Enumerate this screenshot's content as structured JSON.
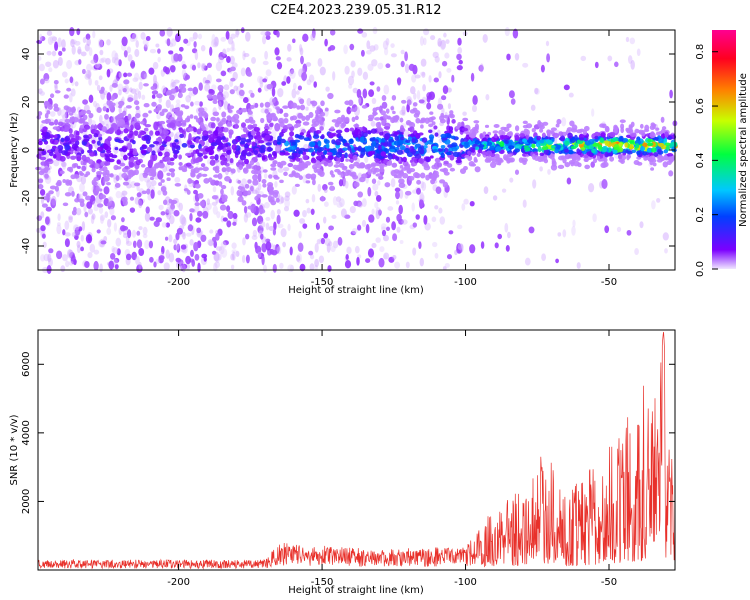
{
  "figure": {
    "title": "C2E4.2023.239.05.31.R12"
  },
  "chart_data": [
    {
      "type": "heatmap",
      "xlabel": "Height of straight line (km)",
      "ylabel": "Frequency (Hz)",
      "xlim": [
        -249,
        -27
      ],
      "ylim": [
        -50,
        50
      ],
      "xticks": [
        -200,
        -150,
        -100,
        -50
      ],
      "yticks": [
        -40,
        -20,
        0,
        20,
        40
      ],
      "colorbar": {
        "label": "Normalized spectral amplitude",
        "range": [
          0.0,
          0.88
        ],
        "ticks": [
          0.0,
          0.2,
          0.4,
          0.6,
          0.8
        ],
        "colormap": [
          "#f0e6ff",
          "#7c00ff",
          "#0040ff",
          "#00c8ff",
          "#00ff40",
          "#c8ff00",
          "#ff8000",
          "#ff0020",
          "#ff0090"
        ]
      },
      "ridge": {
        "frequency_hz": 2,
        "description_points": [
          {
            "x": -165,
            "amp": 0.25
          },
          {
            "x": -120,
            "amp": 0.28
          },
          {
            "x": -100,
            "amp": 0.32
          },
          {
            "x": -75,
            "amp": 0.45
          },
          {
            "x": -50,
            "amp": 0.6
          },
          {
            "x": -30,
            "amp": 0.55
          }
        ]
      }
    },
    {
      "type": "line",
      "xlabel": "Height of straight line (km)",
      "ylabel": "SNR (10 * v/v)",
      "xlim": [
        -249,
        -27
      ],
      "ylim": [
        0,
        7000
      ],
      "xticks": [
        -200,
        -150,
        -100,
        -50
      ],
      "yticks": [
        2000,
        4000,
        6000
      ],
      "color": "#e8302a",
      "envelope": [
        {
          "x": -249,
          "y": 300
        },
        {
          "x": -170,
          "y": 300
        },
        {
          "x": -165,
          "y": 800
        },
        {
          "x": -130,
          "y": 600
        },
        {
          "x": -100,
          "y": 700
        },
        {
          "x": -93,
          "y": 1500
        },
        {
          "x": -85,
          "y": 2300
        },
        {
          "x": -76,
          "y": 2900
        },
        {
          "x": -72,
          "y": 3900
        },
        {
          "x": -65,
          "y": 2200
        },
        {
          "x": -55,
          "y": 3100
        },
        {
          "x": -45,
          "y": 4300
        },
        {
          "x": -38,
          "y": 5600
        },
        {
          "x": -33,
          "y": 5000
        },
        {
          "x": -31,
          "y": 7000
        },
        {
          "x": -29,
          "y": 3800
        },
        {
          "x": -27,
          "y": 3000
        }
      ]
    }
  ]
}
